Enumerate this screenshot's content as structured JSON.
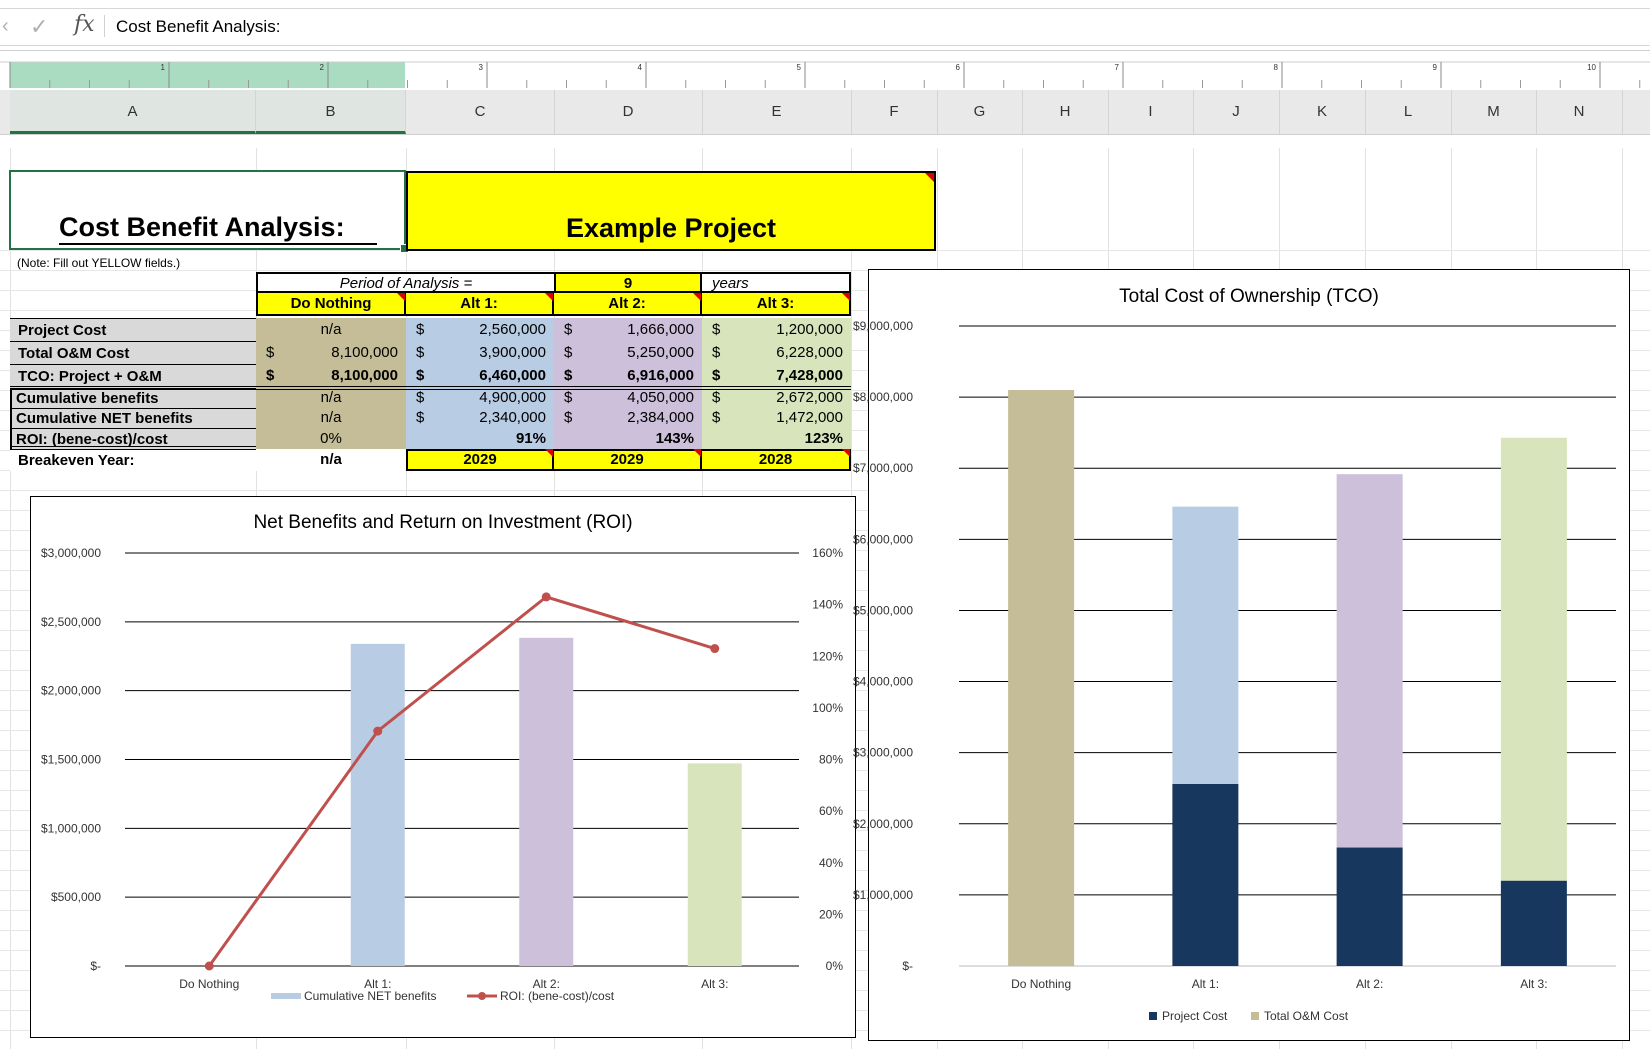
{
  "formula_bar": {
    "content": "Cost Benefit Analysis:",
    "fx": "fx"
  },
  "ruler": {
    "marks": [
      "1",
      "2",
      "3",
      "4",
      "5",
      "6",
      "7",
      "8",
      "9",
      "10"
    ]
  },
  "columns": [
    "A",
    "B",
    "C",
    "D",
    "E",
    "F",
    "G",
    "H",
    "I",
    "J",
    "K",
    "L",
    "M",
    "N"
  ],
  "sheet": {
    "title": "Cost Benefit Analysis:",
    "project_name": "Example Project",
    "note": "(Note: Fill out YELLOW fields.)",
    "period_label": "Period of Analysis =",
    "period_value": "9",
    "period_unit": "years",
    "headers": [
      "Do Nothing",
      "Alt 1:",
      "Alt 2:",
      "Alt 3:"
    ],
    "rows": [
      {
        "label": "Project Cost",
        "b": "n/a",
        "b_dollar": "",
        "c": "2,560,000",
        "d": "1,666,000",
        "e": "1,200,000",
        "c_dollar": "$",
        "d_dollar": "$",
        "e_dollar": "$"
      },
      {
        "label": "Total O&M Cost",
        "b": "8,100,000",
        "b_dollar": "$",
        "c": "3,900,000",
        "d": "5,250,000",
        "e": "6,228,000",
        "c_dollar": "$",
        "d_dollar": "$",
        "e_dollar": "$"
      },
      {
        "label": "TCO: Project + O&M",
        "b": "8,100,000",
        "b_dollar": "$",
        "c": "6,460,000",
        "d": "6,916,000",
        "e": "7,428,000",
        "c_dollar": "$",
        "d_dollar": "$",
        "e_dollar": "$"
      },
      {
        "label": "Cumulative benefits",
        "b": "n/a",
        "b_dollar": "",
        "c": "4,900,000",
        "d": "4,050,000",
        "e": "2,672,000",
        "c_dollar": "$",
        "d_dollar": "$",
        "e_dollar": "$"
      },
      {
        "label": "Cumulative NET benefits",
        "b": "n/a",
        "b_dollar": "",
        "c": "2,340,000",
        "d": "2,384,000",
        "e": "1,472,000",
        "c_dollar": "$",
        "d_dollar": "$",
        "e_dollar": "$"
      },
      {
        "label": "ROI: (bene-cost)/cost",
        "b": "0%",
        "b_dollar": "",
        "c": "91%",
        "d": "143%",
        "e": "123%",
        "c_dollar": "",
        "d_dollar": "",
        "e_dollar": ""
      },
      {
        "label": "Breakeven Year:",
        "b": "n/a",
        "b_dollar": "",
        "c": "2029",
        "d": "2029",
        "e": "2028",
        "c_dollar": "",
        "d_dollar": "",
        "e_dollar": ""
      }
    ]
  },
  "colors": {
    "do_nothing": "#c4bd97",
    "alt1": "#b8cce4",
    "alt2": "#ccc0da",
    "alt3": "#d8e4bc",
    "project_cost": "#17375e",
    "roi_line": "#c0504d",
    "yellow": "#ffff00",
    "selection_green": "#217346"
  },
  "chart_data": [
    {
      "type": "bar",
      "title": "Net Benefits and Return on Investment (ROI)",
      "categories": [
        "Do Nothing",
        "Alt 1:",
        "Alt 2:",
        "Alt 3:"
      ],
      "y_ticks": [
        "$-",
        "$500,000",
        "$1,000,000",
        "$1,500,000",
        "$2,000,000",
        "$2,500,000",
        "$3,000,000"
      ],
      "y2_ticks": [
        "0%",
        "20%",
        "40%",
        "60%",
        "80%",
        "100%",
        "120%",
        "140%",
        "160%"
      ],
      "ylim": [
        0,
        3000000
      ],
      "y2lim": [
        0,
        1.6
      ],
      "series": [
        {
          "name": "Cumulative NET benefits",
          "type": "bar",
          "values": [
            0,
            2340000,
            2384000,
            1472000
          ]
        },
        {
          "name": "ROI: (bene-cost)/cost",
          "type": "line",
          "axis": "secondary",
          "values": [
            0,
            0.91,
            1.43,
            1.23
          ]
        }
      ],
      "legend": "bottom"
    },
    {
      "type": "bar",
      "stacked": true,
      "title": "Total Cost of Ownership (TCO)",
      "categories": [
        "Do Nothing",
        "Alt 1:",
        "Alt 2:",
        "Alt 3:"
      ],
      "y_ticks": [
        "$-",
        "$1,000,000",
        "$2,000,000",
        "$3,000,000",
        "$4,000,000",
        "$5,000,000",
        "$6,000,000",
        "$7,000,000",
        "$8,000,000",
        "$9,000,000"
      ],
      "ylim": [
        0,
        9000000
      ],
      "series": [
        {
          "name": "Project Cost",
          "values": [
            0,
            2560000,
            1666000,
            1200000
          ]
        },
        {
          "name": "Total O&M Cost",
          "values": [
            8100000,
            3900000,
            5250000,
            6228000
          ]
        }
      ],
      "legend": "bottom"
    }
  ]
}
